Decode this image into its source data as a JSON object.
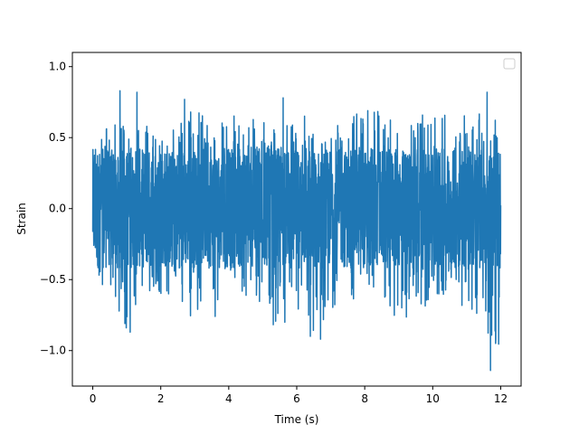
{
  "chart_data": {
    "type": "line",
    "title": "",
    "xlabel": "Time (s)",
    "ylabel": "Strain",
    "xlim": [
      -0.6,
      12.6
    ],
    "ylim": [
      -1.25,
      1.1
    ],
    "grid": false,
    "legend": {
      "placement": "top-right",
      "entries": []
    },
    "x_ticks": [
      {
        "value": 0,
        "label": "0"
      },
      {
        "value": 2,
        "label": "2"
      },
      {
        "value": 4,
        "label": "4"
      },
      {
        "value": 6,
        "label": "6"
      },
      {
        "value": 8,
        "label": "8"
      },
      {
        "value": 10,
        "label": "10"
      },
      {
        "value": 12,
        "label": "12"
      }
    ],
    "y_ticks": [
      {
        "value": -1.0,
        "label": "−1.0"
      },
      {
        "value": -0.5,
        "label": "−0.5"
      },
      {
        "value": 0.0,
        "label": "0.0"
      },
      {
        "value": 0.5,
        "label": "0.5"
      },
      {
        "value": 1.0,
        "label": "1.0"
      }
    ],
    "series": [
      {
        "color": "#1f77b4",
        "x_range": [
          0,
          12
        ],
        "envelope_upper": [
          0.46,
          0.62,
          0.6,
          0.83,
          0.6,
          0.56,
          0.72,
          0.64,
          0.6,
          0.68,
          0.66,
          0.62,
          0.6,
          0.68,
          0.78,
          0.72,
          0.7,
          0.74,
          0.65,
          0.6,
          0.66,
          0.66,
          0.72,
          0.66,
          0.7,
          0.82
        ],
        "envelope_lower": [
          -0.62,
          -0.63,
          -0.87,
          -0.63,
          -0.6,
          -0.62,
          -0.78,
          -0.66,
          -0.64,
          -0.62,
          -0.66,
          -0.82,
          -0.8,
          -0.9,
          -0.92,
          -0.65,
          -0.64,
          -0.63,
          -0.72,
          -0.82,
          -0.72,
          -0.66,
          -0.62,
          -0.72,
          -0.8,
          -1.14
        ],
        "peaks": [
          {
            "x": 1.1,
            "y": -0.87
          },
          {
            "x": 0.8,
            "y": 0.83
          },
          {
            "x": 1.3,
            "y": 0.82
          },
          {
            "x": 2.7,
            "y": 0.77
          },
          {
            "x": 3.6,
            "y": -0.76
          },
          {
            "x": 5.6,
            "y": 0.78
          },
          {
            "x": 6.4,
            "y": -0.9
          },
          {
            "x": 6.7,
            "y": -0.92
          },
          {
            "x": 11.6,
            "y": 0.82
          },
          {
            "x": 11.7,
            "y": -1.14
          },
          {
            "x": 11.85,
            "y": -0.95
          }
        ]
      }
    ]
  }
}
